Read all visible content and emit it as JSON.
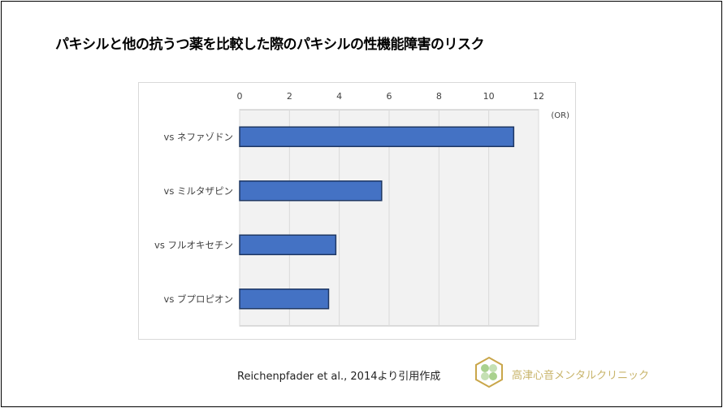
{
  "title": "パキシルと他の抗うつ薬を比較した際のパキシルの性機能障害のリスク",
  "citation": "Reichenpfader et al., 2014より引用作成",
  "clinic_name": "高津心音メンタルクリニック",
  "colors": {
    "bar": "#4472c4",
    "bar_border": "#1f3864",
    "plot_bg": "#f2f2f2",
    "grid": "#d9d9d9"
  },
  "chart_data": {
    "type": "bar",
    "orientation": "horizontal",
    "title": "パキシルと他の抗うつ薬を比較した際のパキシルの性機能障害のリスク",
    "categories": [
      "vs ネファゾドン",
      "vs ミルタザピン",
      "vs フルオキセチン",
      "vs ブプロピオン"
    ],
    "values": [
      11.0,
      5.7,
      3.86,
      3.57
    ],
    "xlabel": "(OR)",
    "ylabel": "",
    "xlim": [
      0,
      12
    ],
    "xticks": [
      "0",
      "2",
      "4",
      "6",
      "8",
      "10",
      "12"
    ],
    "xaxis_position": "top",
    "grid": true,
    "legend": "none"
  }
}
